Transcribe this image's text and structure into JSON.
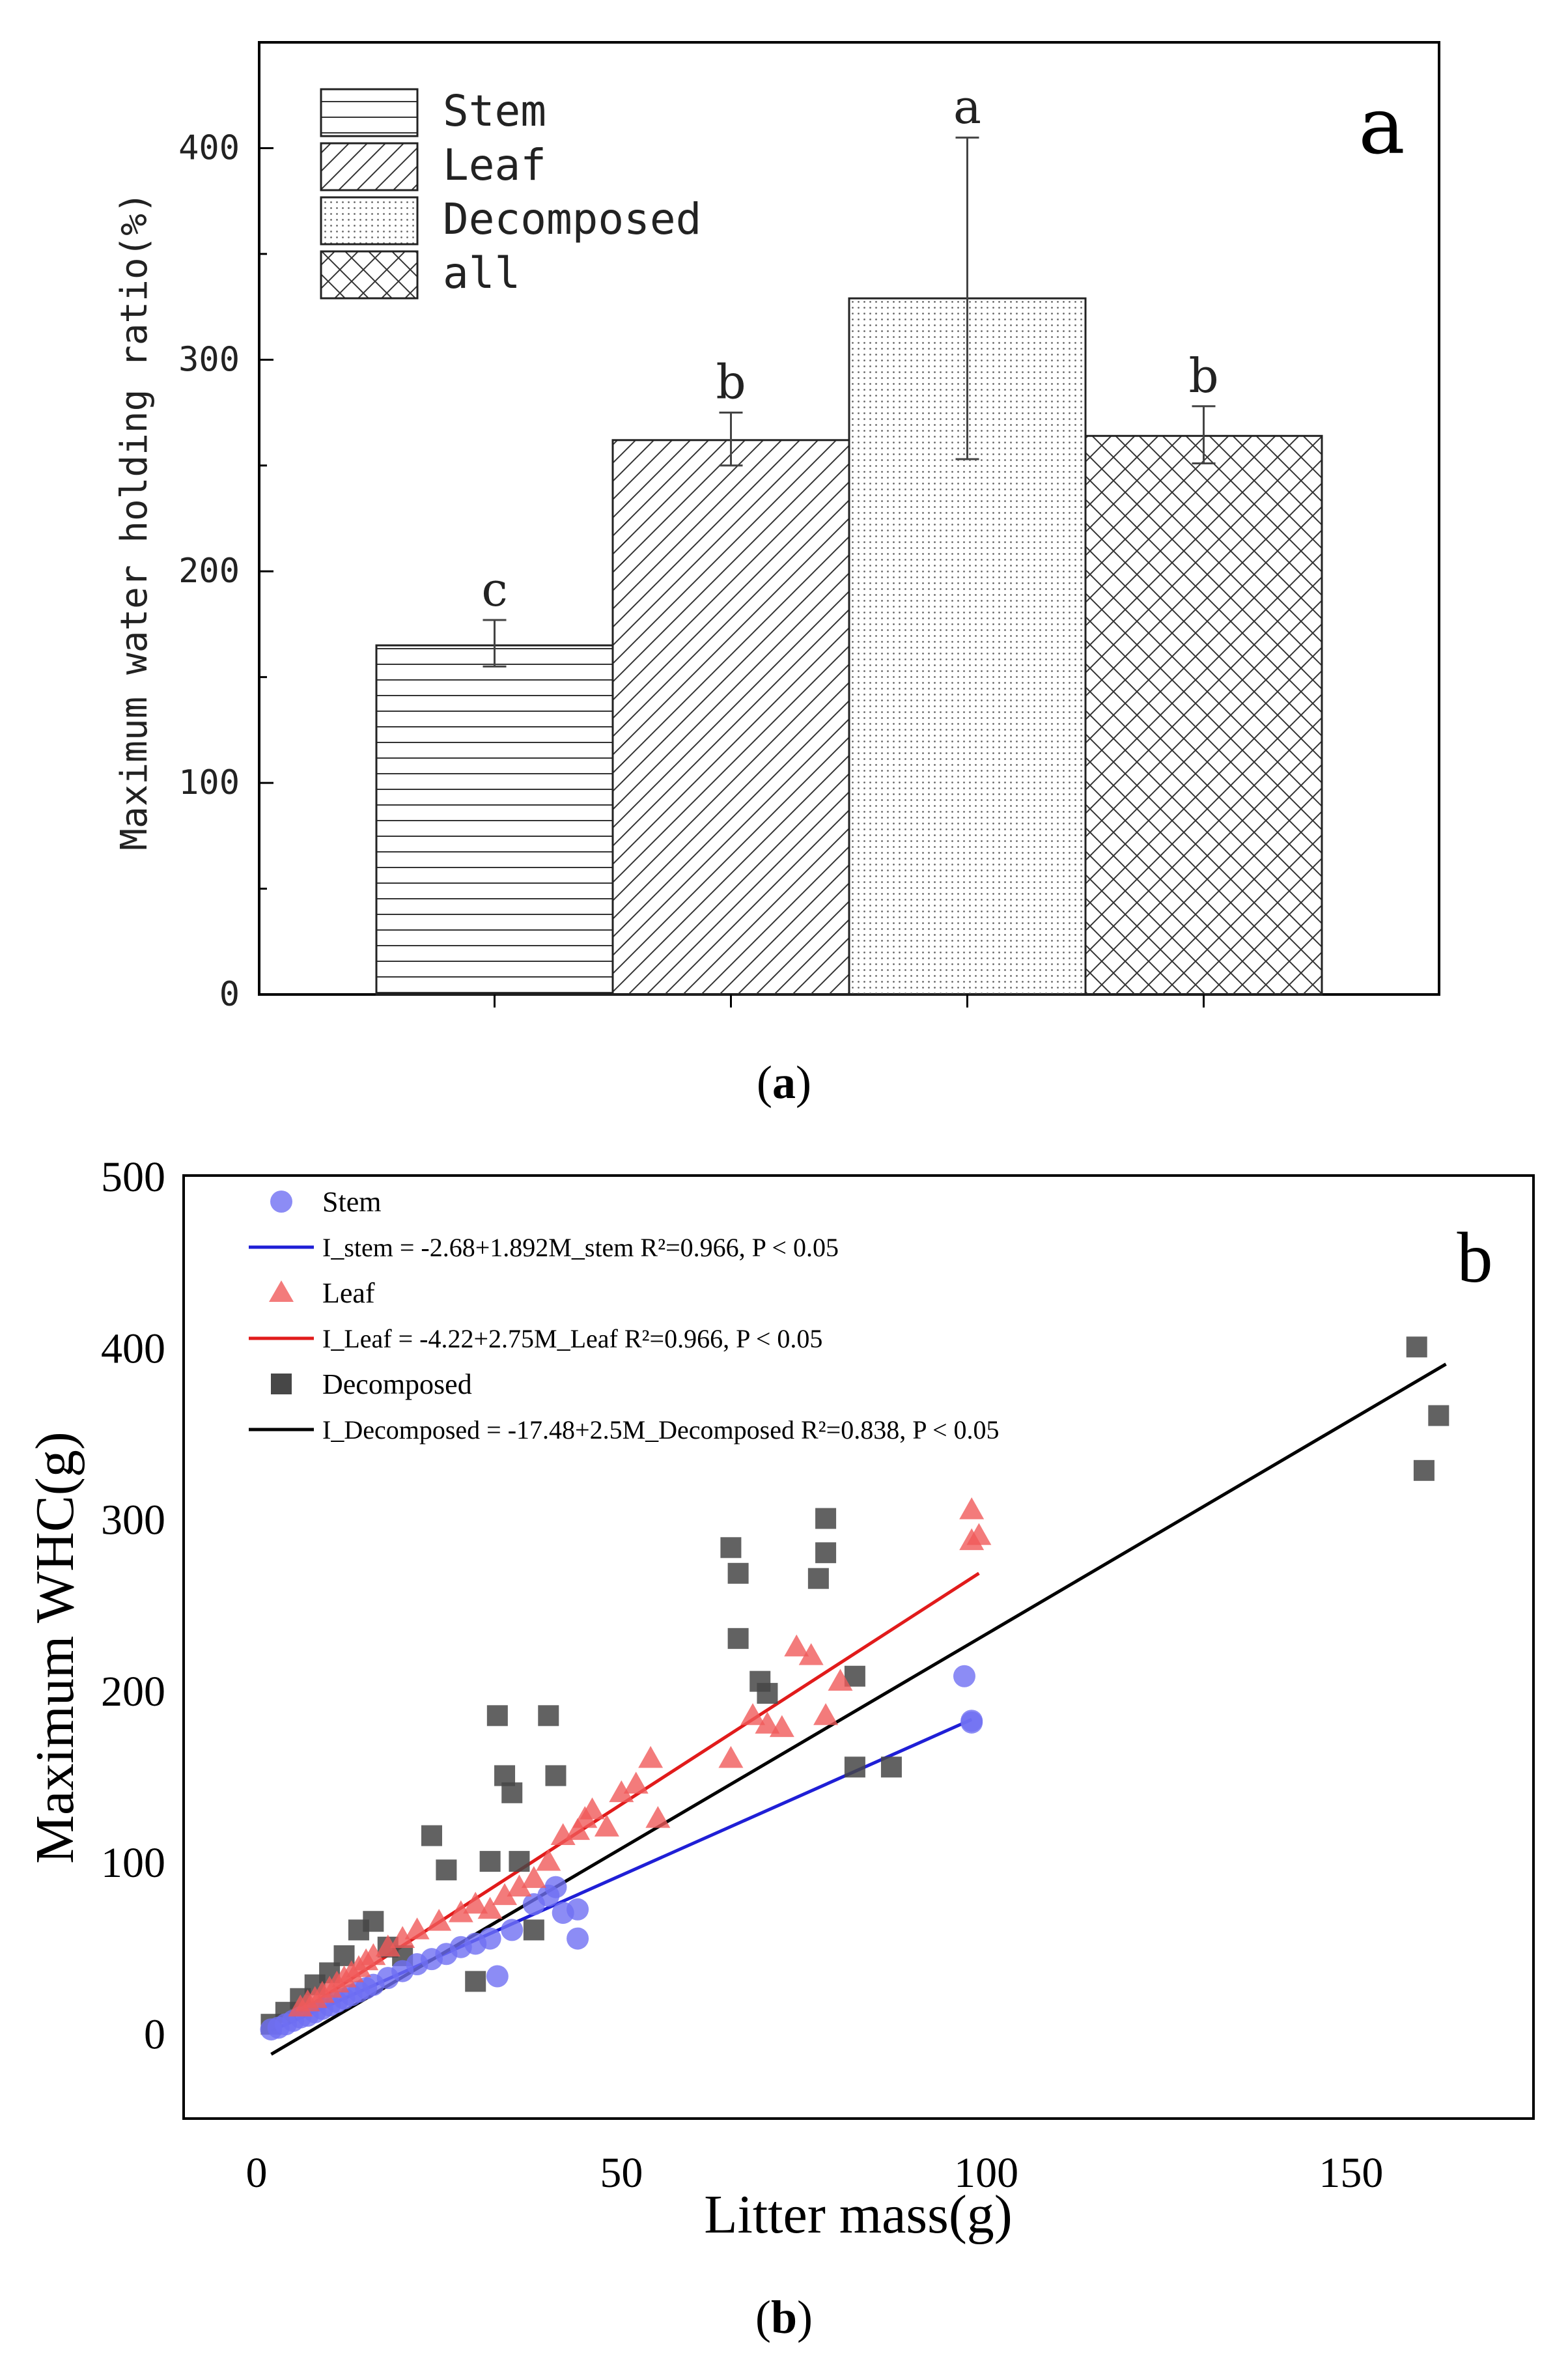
{
  "figure": {
    "caption_a_open": "(",
    "caption_a_letter": "a",
    "caption_a_close": ")",
    "caption_b_open": "(",
    "caption_b_letter": "b",
    "caption_b_close": ")"
  },
  "chart_data": [
    {
      "id": "a",
      "type": "bar",
      "panel_label": "a",
      "categories": [
        "Stem",
        "Leaf",
        "Decomposed",
        "all"
      ],
      "values": [
        165,
        262,
        329,
        264
      ],
      "error_bars": [
        [
          155,
          177
        ],
        [
          250,
          275
        ],
        [
          253,
          405
        ],
        [
          251,
          278
        ]
      ],
      "significance_letters": [
        "c",
        "b",
        "a",
        "b"
      ],
      "patterns": [
        "horizontal",
        "diagonal",
        "dots",
        "crosshatch"
      ],
      "xlabel": "",
      "ylabel": "Maximum water holding ratio(%)",
      "ylim": [
        0,
        450
      ],
      "yticks": [
        "0",
        "100",
        "200",
        "300",
        "400"
      ],
      "legend": [
        "Stem",
        "Leaf",
        "Decomposed",
        "all"
      ],
      "legend_position": "top-left",
      "grid": false
    },
    {
      "id": "b",
      "type": "scatter",
      "panel_label": "b",
      "xlabel": "Litter mass(g)",
      "ylabel": "Maximum WHC(g)",
      "xlim": [
        -10,
        175
      ],
      "ylim": [
        -50,
        500
      ],
      "xticks": [
        "0",
        "50",
        "100",
        "150"
      ],
      "yticks": [
        "0",
        "100",
        "200",
        "300",
        "400",
        "500"
      ],
      "legend_position": "top-left",
      "grid": false,
      "legend_rows": [
        {
          "name": "Stem",
          "equation": "I_stem = -2.68+1.892M_stem  R²=0.966, P < 0.05"
        },
        {
          "name": "Leaf",
          "equation": "I_Leaf = -4.22+2.75M_Leaf  R²=0.966, P < 0.05"
        },
        {
          "name": "Decomposed",
          "equation": "I_Decomposed = -17.48+2.5M_Decomposed  R²=0.838, P < 0.05"
        }
      ],
      "series": [
        {
          "name": "Stem",
          "marker": "circle",
          "color": "#6f6ff2",
          "line_color": "#1f1fd6",
          "intercept": -2.68,
          "slope": 1.892,
          "fit_range": [
            2,
            98
          ],
          "x": [
            2,
            3,
            4,
            5,
            6,
            7,
            8,
            9,
            10,
            11,
            12,
            13,
            14,
            15,
            16,
            18,
            20,
            22,
            24,
            26,
            28,
            30,
            32,
            33,
            35,
            38,
            40,
            41,
            42,
            44,
            44,
            97,
            98,
            98
          ],
          "y": [
            2,
            3,
            5,
            7,
            9,
            10,
            12,
            14,
            16,
            18,
            20,
            22,
            24,
            26,
            28,
            32,
            36,
            40,
            43,
            46,
            50,
            52,
            55,
            33,
            60,
            75,
            80,
            85,
            70,
            72,
            55,
            208,
            182,
            181
          ]
        },
        {
          "name": "Leaf",
          "marker": "triangle",
          "color": "#f05a5a",
          "line_color": "#e11b1b",
          "intercept": -4.22,
          "slope": 2.75,
          "fit_range": [
            5,
            99
          ],
          "x": [
            6,
            7,
            8,
            9,
            10,
            11,
            12,
            13,
            14,
            15,
            16,
            18,
            20,
            22,
            25,
            28,
            30,
            32,
            34,
            36,
            38,
            40,
            42,
            44,
            45,
            46,
            48,
            50,
            52,
            54,
            55,
            65,
            68,
            70,
            72,
            74,
            76,
            78,
            80,
            98,
            99,
            98
          ],
          "y": [
            15,
            18,
            20,
            23,
            26,
            29,
            32,
            35,
            38,
            42,
            45,
            50,
            55,
            60,
            65,
            70,
            75,
            72,
            80,
            85,
            90,
            100,
            115,
            118,
            125,
            130,
            120,
            140,
            145,
            160,
            125,
            160,
            185,
            180,
            178,
            225,
            220,
            185,
            205,
            305,
            290,
            287
          ]
        },
        {
          "name": "Decomposed",
          "marker": "square",
          "color": "#474747",
          "line_color": "#000000",
          "intercept": -17.48,
          "slope": 2.5,
          "fit_range": [
            2,
            163
          ],
          "x": [
            2,
            4,
            6,
            8,
            10,
            12,
            14,
            16,
            18,
            20,
            24,
            26,
            30,
            32,
            33,
            34,
            35,
            36,
            38,
            40,
            41,
            65,
            66,
            66,
            69,
            70,
            77,
            78,
            78,
            82,
            87,
            82,
            159,
            160,
            162
          ],
          "y": [
            5,
            12,
            20,
            28,
            35,
            45,
            60,
            65,
            50,
            45,
            115,
            95,
            30,
            100,
            185,
            150,
            140,
            100,
            60,
            185,
            150,
            283,
            268,
            230,
            205,
            198,
            265,
            280,
            300,
            208,
            155,
            155,
            400,
            328,
            360
          ]
        }
      ]
    }
  ]
}
